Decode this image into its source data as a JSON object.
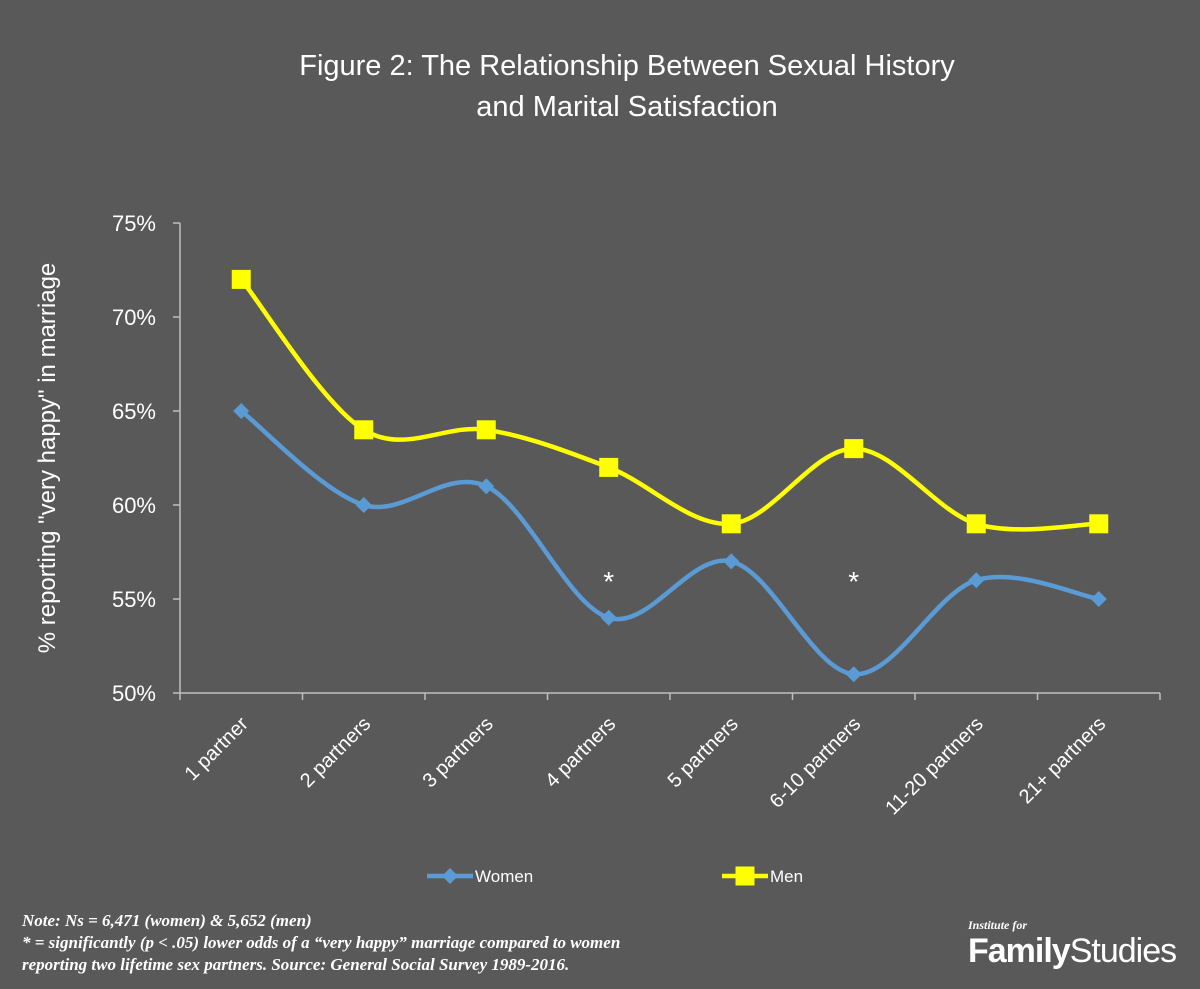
{
  "chart_data": {
    "type": "line",
    "title_lines": [
      "Figure  2: The Relationship Between Sexual History",
      "and Marital Satisfaction"
    ],
    "ylabel": "% reporting \"very happy\" in marriage",
    "xlabel": "",
    "categories": [
      "1 partner",
      "2 partners",
      "3 partners",
      "4 partners",
      "5 partners",
      "6-10 partners",
      "11-20 partners",
      "21+ partners"
    ],
    "ylim": [
      50,
      75
    ],
    "yticks": [
      50,
      55,
      60,
      65,
      70,
      75
    ],
    "ytick_labels": [
      "50%",
      "55%",
      "60%",
      "65%",
      "70%",
      "75%"
    ],
    "series": [
      {
        "name": "Women",
        "color": "#5B9BD5",
        "marker": "diamond",
        "values": [
          65,
          60,
          61,
          54,
          57,
          51,
          56,
          55
        ]
      },
      {
        "name": "Men",
        "color": "#FFFF00",
        "marker": "square",
        "values": [
          72,
          64,
          64,
          62,
          59,
          63,
          59,
          59
        ]
      }
    ],
    "annotations": [
      {
        "text": "*",
        "category": "4 partners",
        "y": 56.5
      },
      {
        "text": "*",
        "category": "6-10 partners",
        "y": 56.5
      }
    ],
    "legend_position": "bottom",
    "grid": false
  },
  "note": {
    "line1": "Note: Ns = 6,471 (women) & 5,652 (men)",
    "line2": "* = significantly (p < .05) lower odds of a “very happy” marriage compared to women",
    "line3": "reporting two lifetime sex partners.  Source: General Social Survey 1989-2016."
  },
  "logo": {
    "small": "Institute for",
    "family": "Family",
    "studies": "Studies"
  }
}
